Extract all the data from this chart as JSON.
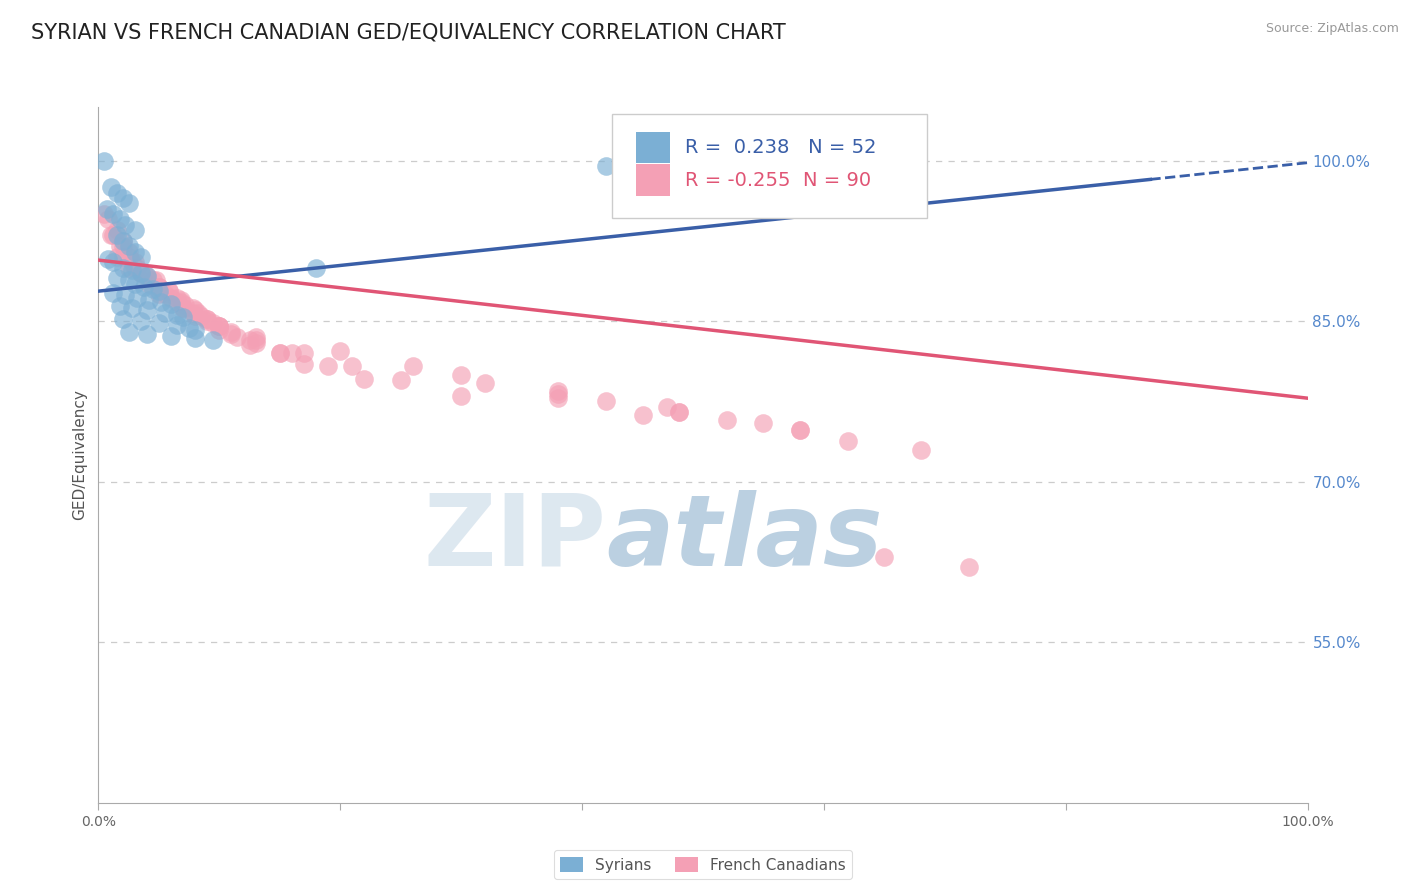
{
  "title": "SYRIAN VS FRENCH CANADIAN GED/EQUIVALENCY CORRELATION CHART",
  "source": "Source: ZipAtlas.com",
  "ylabel": "GED/Equivalency",
  "y_tick_values_right": [
    1.0,
    0.85,
    0.7,
    0.55
  ],
  "y_tick_labels_right": [
    "100.0%",
    "85.0%",
    "70.0%",
    "55.0%"
  ],
  "xlim": [
    0.0,
    1.0
  ],
  "ylim": [
    0.4,
    1.05
  ],
  "syrian_R": 0.238,
  "syrian_N": 52,
  "french_R": -0.255,
  "french_N": 90,
  "syrian_color": "#7bafd4",
  "french_color": "#f4a0b5",
  "syrian_line_color": "#3a5fa8",
  "french_line_color": "#e05575",
  "background_color": "#ffffff",
  "grid_color": "#cccccc",
  "title_fontsize": 15,
  "axis_label_fontsize": 11,
  "tick_label_fontsize": 10,
  "legend_fontsize": 14,
  "syrian_line_x0": 0.0,
  "syrian_line_y0": 0.878,
  "syrian_line_x1": 1.0,
  "syrian_line_y1": 0.998,
  "french_line_x0": 0.0,
  "french_line_y0": 0.907,
  "french_line_x1": 1.0,
  "french_line_y1": 0.778,
  "syrian_points_x": [
    0.005,
    0.01,
    0.015,
    0.02,
    0.025,
    0.007,
    0.012,
    0.018,
    0.022,
    0.03,
    0.015,
    0.02,
    0.025,
    0.03,
    0.035,
    0.008,
    0.012,
    0.02,
    0.028,
    0.035,
    0.04,
    0.015,
    0.025,
    0.03,
    0.038,
    0.045,
    0.05,
    0.012,
    0.022,
    0.032,
    0.042,
    0.052,
    0.06,
    0.018,
    0.028,
    0.04,
    0.055,
    0.065,
    0.07,
    0.02,
    0.035,
    0.05,
    0.065,
    0.075,
    0.08,
    0.025,
    0.04,
    0.06,
    0.08,
    0.095,
    0.18,
    0.42
  ],
  "syrian_points_y": [
    1.0,
    0.975,
    0.97,
    0.965,
    0.96,
    0.955,
    0.95,
    0.945,
    0.94,
    0.935,
    0.93,
    0.925,
    0.92,
    0.915,
    0.91,
    0.908,
    0.905,
    0.9,
    0.898,
    0.895,
    0.892,
    0.89,
    0.888,
    0.885,
    0.882,
    0.88,
    0.878,
    0.876,
    0.874,
    0.872,
    0.87,
    0.868,
    0.866,
    0.864,
    0.862,
    0.86,
    0.858,
    0.856,
    0.854,
    0.852,
    0.85,
    0.848,
    0.846,
    0.844,
    0.842,
    0.84,
    0.838,
    0.836,
    0.834,
    0.832,
    0.9,
    0.995
  ],
  "french_points_x": [
    0.005,
    0.01,
    0.015,
    0.02,
    0.025,
    0.008,
    0.015,
    0.02,
    0.025,
    0.03,
    0.012,
    0.018,
    0.025,
    0.032,
    0.038,
    0.02,
    0.028,
    0.035,
    0.042,
    0.05,
    0.03,
    0.04,
    0.05,
    0.06,
    0.07,
    0.035,
    0.048,
    0.058,
    0.068,
    0.078,
    0.045,
    0.058,
    0.068,
    0.08,
    0.09,
    0.05,
    0.065,
    0.078,
    0.09,
    0.1,
    0.055,
    0.072,
    0.085,
    0.1,
    0.115,
    0.065,
    0.082,
    0.095,
    0.11,
    0.125,
    0.07,
    0.09,
    0.11,
    0.13,
    0.15,
    0.08,
    0.1,
    0.125,
    0.15,
    0.17,
    0.1,
    0.13,
    0.16,
    0.19,
    0.22,
    0.13,
    0.17,
    0.21,
    0.25,
    0.3,
    0.2,
    0.26,
    0.32,
    0.38,
    0.45,
    0.3,
    0.38,
    0.47,
    0.55,
    0.38,
    0.48,
    0.58,
    0.42,
    0.52,
    0.62,
    0.48,
    0.58,
    0.68,
    0.65,
    0.72
  ],
  "french_points_y": [
    0.95,
    0.93,
    0.91,
    0.92,
    0.9,
    0.945,
    0.935,
    0.925,
    0.915,
    0.905,
    0.93,
    0.92,
    0.91,
    0.9,
    0.895,
    0.91,
    0.905,
    0.895,
    0.885,
    0.875,
    0.9,
    0.892,
    0.882,
    0.872,
    0.862,
    0.895,
    0.888,
    0.878,
    0.868,
    0.858,
    0.888,
    0.878,
    0.87,
    0.86,
    0.85,
    0.882,
    0.872,
    0.862,
    0.852,
    0.842,
    0.875,
    0.865,
    0.855,
    0.845,
    0.835,
    0.868,
    0.858,
    0.848,
    0.838,
    0.828,
    0.862,
    0.852,
    0.84,
    0.83,
    0.82,
    0.855,
    0.845,
    0.832,
    0.82,
    0.81,
    0.845,
    0.832,
    0.82,
    0.808,
    0.796,
    0.835,
    0.82,
    0.808,
    0.795,
    0.78,
    0.822,
    0.808,
    0.792,
    0.778,
    0.762,
    0.8,
    0.785,
    0.77,
    0.755,
    0.782,
    0.765,
    0.748,
    0.775,
    0.758,
    0.738,
    0.765,
    0.748,
    0.73,
    0.63,
    0.62
  ]
}
